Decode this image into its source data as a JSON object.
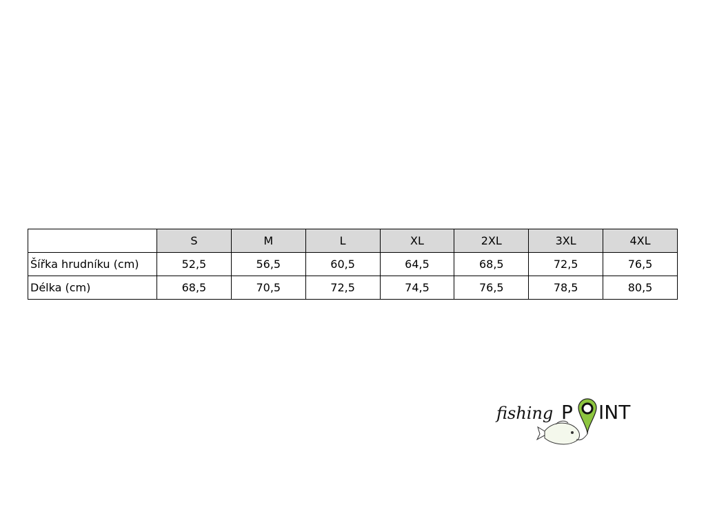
{
  "table": {
    "headers": [
      "",
      "S",
      "M",
      "L",
      "XL",
      "2XL",
      "3XL",
      "4XL"
    ],
    "rows": [
      {
        "label": "Šířka hrudníku (cm)",
        "values": [
          "52,5",
          "56,5",
          "60,5",
          "64,5",
          "68,5",
          "72,5",
          "76,5"
        ]
      },
      {
        "label": "Délka (cm)",
        "values": [
          "68,5",
          "70,5",
          "72,5",
          "74,5",
          "76,5",
          "78,5",
          "80,5"
        ]
      }
    ],
    "header_bg": "#d9d9d9"
  },
  "logo": {
    "text_script": "fishing",
    "text_caps": "POINT",
    "accent": "#8dc63f",
    "icon": "fish-with-map-pin"
  }
}
